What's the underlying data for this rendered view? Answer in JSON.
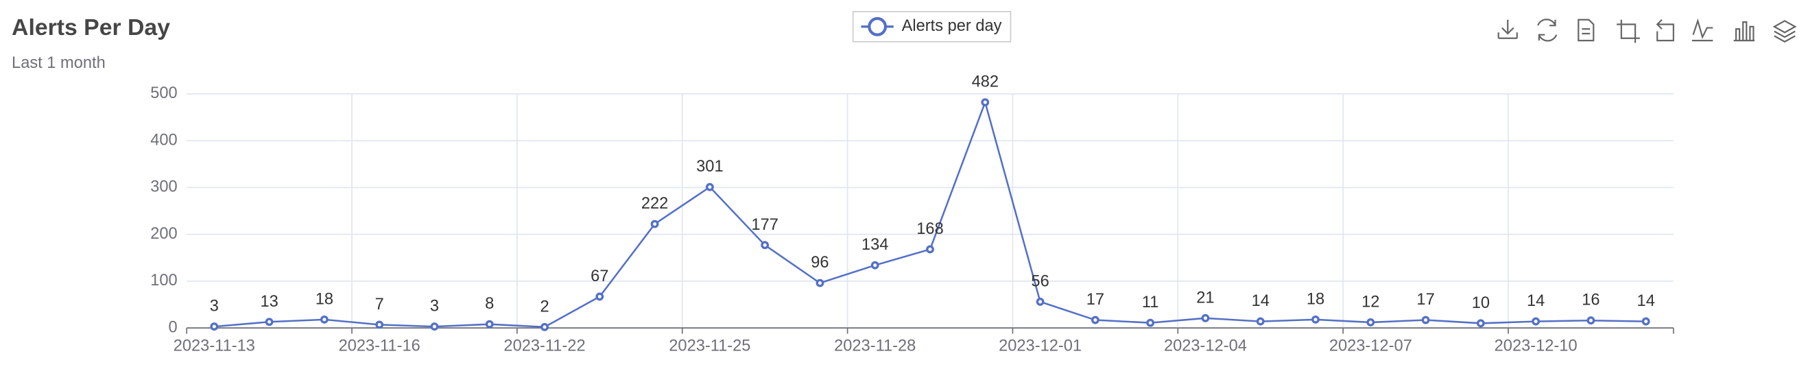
{
  "chart_data": {
    "type": "line",
    "title": "Alerts Per Day",
    "subtitle": "Last 1 month",
    "categories": [
      "2023-11-13",
      null,
      null,
      "2023-11-16",
      null,
      null,
      "2023-11-22",
      null,
      null,
      "2023-11-25",
      null,
      null,
      "2023-11-28",
      null,
      null,
      "2023-12-01",
      null,
      null,
      "2023-12-04",
      null,
      null,
      "2023-12-07",
      null,
      null,
      "2023-12-10",
      null,
      null
    ],
    "series": [
      {
        "name": "Alerts per day",
        "color": "#5470c6",
        "values": [
          3,
          13,
          18,
          7,
          3,
          8,
          2,
          67,
          222,
          301,
          177,
          96,
          134,
          168,
          482,
          56,
          17,
          11,
          21,
          14,
          18,
          12,
          17,
          10,
          14,
          16,
          14
        ]
      }
    ],
    "ylim": [
      0,
      500
    ],
    "yticks": [
      0,
      100,
      200,
      300,
      400,
      500
    ],
    "grid": true,
    "legend": "top"
  }
}
